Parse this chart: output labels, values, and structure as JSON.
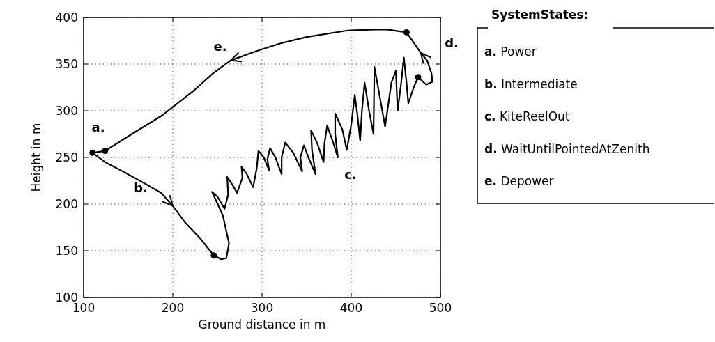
{
  "chart_data": {
    "type": "line",
    "xlabel": "Ground distance in m",
    "ylabel": "Height in m",
    "xlim": [
      100,
      500
    ],
    "ylim": [
      100,
      400
    ],
    "xticks": [
      100,
      200,
      300,
      400,
      500
    ],
    "yticks": [
      100,
      150,
      200,
      250,
      300,
      350,
      400
    ],
    "grid": true,
    "legend_title": "SystemStates:",
    "series": [
      {
        "type": "line",
        "color": "#000000",
        "marker": "none",
        "x": [
          124,
          110,
          124,
          144,
          165,
          187,
          200,
          214,
          230,
          246,
          254,
          260,
          263,
          256,
          244,
          250,
          258,
          262,
          261,
          266,
          272,
          278,
          277,
          283,
          290,
          294,
          296,
          302,
          308,
          306,
          309,
          315,
          322,
          322,
          326,
          335,
          345,
          343,
          347,
          352,
          360,
          356,
          355,
          362,
          369,
          370,
          373,
          379,
          385,
          382,
          382,
          390,
          395,
          400,
          404,
          407,
          410,
          412,
          415,
          420,
          425,
          426,
          432,
          438,
          445,
          450,
          452,
          456,
          459,
          462,
          464,
          470,
          475,
          484,
          491,
          490,
          485,
          478,
          462
        ],
        "values": [
          257,
          255,
          245,
          235,
          224,
          212,
          198,
          180,
          164,
          145,
          141,
          142,
          158,
          188,
          213,
          208,
          195,
          210,
          229,
          222,
          212,
          228,
          240,
          232,
          218,
          238,
          257,
          250,
          236,
          248,
          260,
          250,
          232,
          250,
          266,
          255,
          235,
          250,
          263,
          250,
          232,
          258,
          279,
          265,
          245,
          265,
          284,
          268,
          250,
          275,
          297,
          280,
          258,
          285,
          317,
          295,
          268,
          300,
          330,
          300,
          275,
          347,
          315,
          283,
          330,
          343,
          300,
          330,
          357,
          330,
          308,
          325,
          336,
          328,
          331,
          340,
          354,
          362,
          384
        ]
      },
      {
        "type": "line",
        "color": "#000000",
        "marker": "none",
        "x": [
          462,
          440,
          427,
          396,
          350,
          320,
          294,
          265,
          245,
          224,
          188,
          154,
          124
        ],
        "values": [
          384,
          387,
          387,
          386,
          379,
          372,
          364,
          354,
          340,
          322,
          295,
          275,
          257
        ]
      },
      {
        "type": "scatter",
        "color": "#000000",
        "marker": "circle",
        "x": [
          110,
          124,
          246,
          462,
          475
        ],
        "values": [
          255,
          257,
          145,
          384,
          336
        ]
      }
    ],
    "annotations": [
      "a.",
      "b.",
      "c.",
      "d.",
      "e.",
      "a. Power",
      "b. Intermediate",
      "c. KiteReelOut",
      "d. WaitUntilPointedAtZenith",
      "e. Depower"
    ]
  }
}
